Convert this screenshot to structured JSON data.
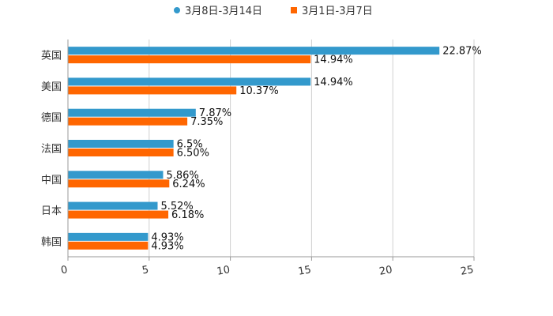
{
  "chart_data": {
    "type": "bar",
    "orientation": "horizontal",
    "categories": [
      "英国",
      "美国",
      "德国",
      "法国",
      "中国",
      "日本",
      "韩国"
    ],
    "series": [
      {
        "name": "3月8日-3月14日",
        "color": "#3399cc",
        "values": [
          22.87,
          14.94,
          7.87,
          6.5,
          5.86,
          5.52,
          4.93
        ],
        "labels": [
          "22.87%",
          "14.94%",
          "7.87%",
          "6.5%",
          "5.86%",
          "5.52%",
          "4.93%"
        ]
      },
      {
        "name": "3月1日-3月7日",
        "color": "#ff6600",
        "values": [
          14.94,
          10.37,
          7.35,
          6.5,
          6.24,
          6.18,
          4.93
        ],
        "labels": [
          "14.94%",
          "10.37%",
          "7.35%",
          "6.50%",
          "6.24%",
          "6.18%",
          "4.93%"
        ]
      }
    ],
    "x_ticks": [
      "0",
      "5",
      "10",
      "15",
      "20",
      "25"
    ],
    "xlim": [
      0,
      25
    ],
    "title": "",
    "xlabel": "",
    "ylabel": "",
    "grid": true,
    "legend_position": "top-center"
  }
}
